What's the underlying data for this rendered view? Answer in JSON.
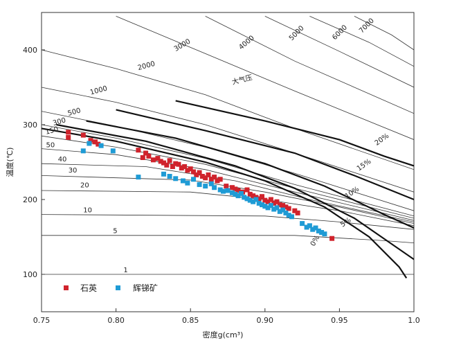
{
  "chart_data": {
    "type": "scatter",
    "title": "",
    "xlabel": "密度g(cm³)",
    "ylabel": "温度(℃)",
    "xlim": [
      0.75,
      1.0
    ],
    "ylim": [
      50,
      450
    ],
    "x_ticks": [
      "0.75",
      "0.80",
      "0.85",
      "0.90",
      "0.95",
      "1.0"
    ],
    "y_ticks": [
      "100",
      "200",
      "300",
      "400"
    ],
    "pressure_labels": [
      "1",
      "5",
      "10",
      "20",
      "30",
      "40",
      "50",
      "150",
      "300",
      "500",
      "1000",
      "2000",
      "3000",
      "4000",
      "5000",
      "6000",
      "7000"
    ],
    "salinity_labels": [
      "0%",
      "5%",
      "10%",
      "15%",
      "20%"
    ],
    "annotations": [
      "大气压"
    ],
    "legend": {
      "position": "bottom-left",
      "items": [
        "石英",
        "辉锑矿"
      ]
    },
    "series": [
      {
        "name": "石英",
        "color": "#d0232c",
        "marker": "square",
        "points": [
          [
            0.768,
            290
          ],
          [
            0.768,
            283
          ],
          [
            0.778,
            286
          ],
          [
            0.783,
            279
          ],
          [
            0.786,
            277
          ],
          [
            0.788,
            274
          ],
          [
            0.815,
            266
          ],
          [
            0.818,
            256
          ],
          [
            0.82,
            262
          ],
          [
            0.822,
            258
          ],
          [
            0.825,
            253
          ],
          [
            0.828,
            255
          ],
          [
            0.83,
            251
          ],
          [
            0.832,
            249
          ],
          [
            0.834,
            246
          ],
          [
            0.836,
            252
          ],
          [
            0.838,
            244
          ],
          [
            0.84,
            248
          ],
          [
            0.842,
            247
          ],
          [
            0.844,
            242
          ],
          [
            0.846,
            244
          ],
          [
            0.848,
            239
          ],
          [
            0.85,
            241
          ],
          [
            0.852,
            237
          ],
          [
            0.854,
            233
          ],
          [
            0.856,
            236
          ],
          [
            0.858,
            231
          ],
          [
            0.86,
            229
          ],
          [
            0.862,
            233
          ],
          [
            0.864,
            227
          ],
          [
            0.866,
            230
          ],
          [
            0.868,
            225
          ],
          [
            0.87,
            227
          ],
          [
            0.874,
            218
          ],
          [
            0.878,
            216
          ],
          [
            0.88,
            214
          ],
          [
            0.882,
            212
          ],
          [
            0.885,
            210
          ],
          [
            0.888,
            213
          ],
          [
            0.89,
            207
          ],
          [
            0.892,
            205
          ],
          [
            0.894,
            203
          ],
          [
            0.896,
            201
          ],
          [
            0.898,
            204
          ],
          [
            0.9,
            199
          ],
          [
            0.902,
            197
          ],
          [
            0.904,
            200
          ],
          [
            0.906,
            195
          ],
          [
            0.908,
            197
          ],
          [
            0.91,
            193
          ],
          [
            0.912,
            192
          ],
          [
            0.914,
            190
          ],
          [
            0.916,
            188
          ],
          [
            0.92,
            185
          ],
          [
            0.922,
            182
          ],
          [
            0.945,
            148
          ]
        ]
      },
      {
        "name": "辉锑矿",
        "color": "#1f9bd5",
        "marker": "square",
        "points": [
          [
            0.778,
            265
          ],
          [
            0.782,
            275
          ],
          [
            0.79,
            272
          ],
          [
            0.798,
            265
          ],
          [
            0.815,
            230
          ],
          [
            0.832,
            234
          ],
          [
            0.836,
            231
          ],
          [
            0.84,
            228
          ],
          [
            0.845,
            225
          ],
          [
            0.848,
            222
          ],
          [
            0.852,
            227
          ],
          [
            0.856,
            220
          ],
          [
            0.86,
            218
          ],
          [
            0.864,
            221
          ],
          [
            0.866,
            216
          ],
          [
            0.87,
            213
          ],
          [
            0.872,
            211
          ],
          [
            0.875,
            212
          ],
          [
            0.878,
            209
          ],
          [
            0.88,
            207
          ],
          [
            0.882,
            205
          ],
          [
            0.884,
            208
          ],
          [
            0.886,
            203
          ],
          [
            0.888,
            201
          ],
          [
            0.89,
            199
          ],
          [
            0.892,
            197
          ],
          [
            0.894,
            200
          ],
          [
            0.896,
            195
          ],
          [
            0.898,
            193
          ],
          [
            0.9,
            191
          ],
          [
            0.902,
            189
          ],
          [
            0.904,
            192
          ],
          [
            0.906,
            187
          ],
          [
            0.908,
            189
          ],
          [
            0.91,
            184
          ],
          [
            0.912,
            186
          ],
          [
            0.914,
            182
          ],
          [
            0.916,
            179
          ],
          [
            0.918,
            177
          ],
          [
            0.925,
            168
          ],
          [
            0.928,
            163
          ],
          [
            0.93,
            165
          ],
          [
            0.932,
            160
          ],
          [
            0.934,
            162
          ],
          [
            0.936,
            158
          ],
          [
            0.938,
            156
          ],
          [
            0.94,
            154
          ]
        ]
      }
    ]
  }
}
